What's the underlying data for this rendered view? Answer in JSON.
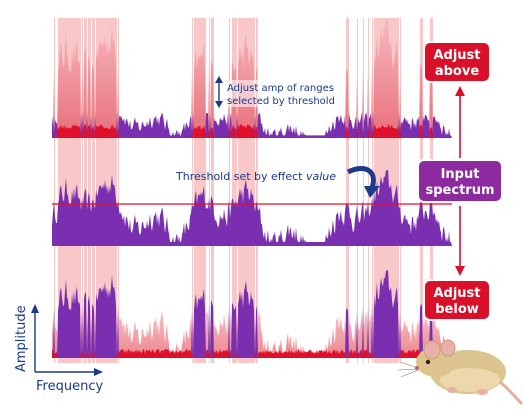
{
  "annotations": {
    "adjust_amp": [
      "Adjust amp of ranges",
      "selected by threshold"
    ],
    "threshold": "Threshold set by effect ",
    "threshold_em": "value"
  },
  "boxes": {
    "adjust_above": [
      "Adjust",
      "above"
    ],
    "input_spectrum": [
      "Input",
      "spectrum"
    ],
    "adjust_below": [
      "Adjust",
      "below"
    ]
  },
  "axes": {
    "y_label": "Amplitude",
    "x_label": "Frequency"
  },
  "colors": {
    "spectrum": "#7a2fb0",
    "highlight_band": "#f8c8c8",
    "red_fill": "#e0102a",
    "pink_fill": "#f2a0a8",
    "box_red": "#d8102a",
    "box_purple": "#8e2aa0",
    "axis_blue": "#1a3a8a",
    "threshold_line": "#e0102a"
  },
  "icons": [
    "double-arrow-icon",
    "curved-arrow-icon",
    "up-arrow-icon",
    "down-arrow-icon",
    "mouse-icon"
  ]
}
